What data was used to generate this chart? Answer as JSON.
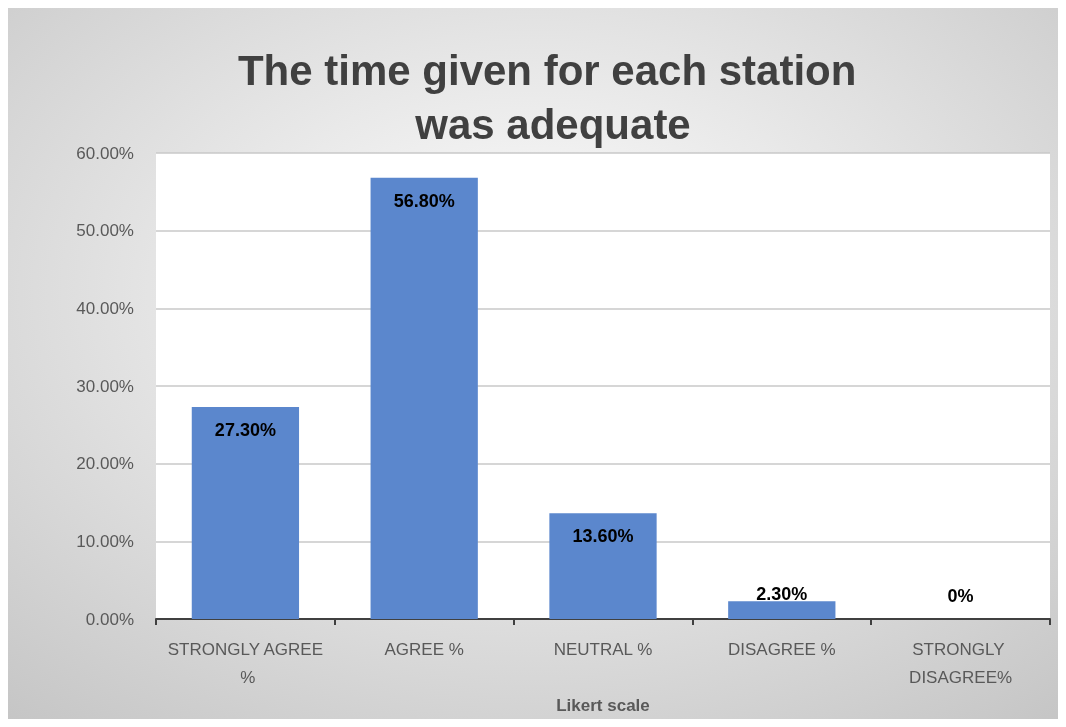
{
  "chart_data": {
    "type": "bar",
    "title": "The time given for each station was adequate",
    "xlabel": "Likert scale",
    "categories": [
      "STRONGLY AGREE %",
      "AGREE %",
      "NEUTRAL %",
      "DISAGREE %",
      "STRONGLY DISAGREE%"
    ],
    "values": [
      27.3,
      56.8,
      13.6,
      2.3,
      0
    ],
    "value_labels": [
      "27.30%",
      "56.80%",
      "13.60%",
      "2.30%",
      "0%"
    ],
    "color": "#5b87cd",
    "ylim": [
      0,
      60
    ],
    "yticks": [
      {
        "value": 0,
        "label": "0.00%"
      },
      {
        "value": 10,
        "label": "10.00%"
      },
      {
        "value": 20,
        "label": "20.00%"
      },
      {
        "value": 30,
        "label": "30.00%"
      },
      {
        "value": 40,
        "label": "40.00%"
      },
      {
        "value": 50,
        "label": "50.00%"
      },
      {
        "value": 60,
        "label": "60.00%"
      }
    ],
    "grid": "y"
  }
}
